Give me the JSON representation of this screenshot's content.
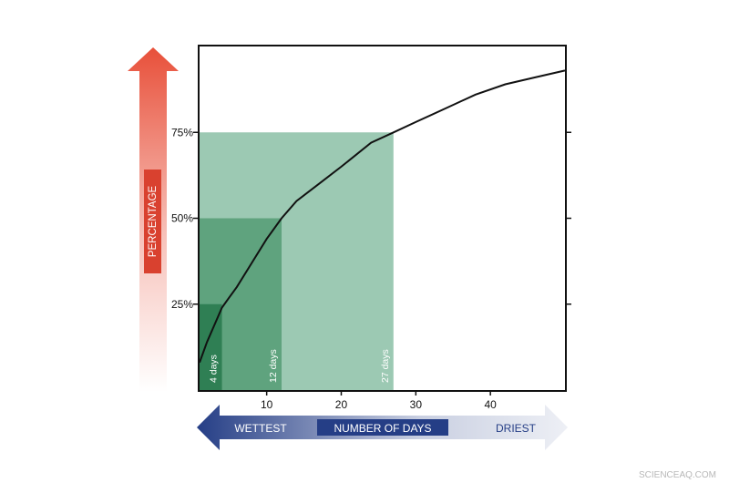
{
  "chart_data": {
    "type": "line",
    "title": "",
    "xlabel": "NUMBER OF DAYS",
    "ylabel": "PERCENTAGE",
    "xlim": [
      1,
      50
    ],
    "ylim": [
      0,
      100
    ],
    "x_ticks": [
      10,
      20,
      30,
      40
    ],
    "x_tick_labels": [
      "10",
      "20",
      "30",
      "40"
    ],
    "y_ticks": [
      25,
      50,
      75
    ],
    "y_tick_labels": [
      "25%",
      "50%",
      "75%"
    ],
    "grid": false,
    "legend": "none",
    "x": [
      1,
      2,
      3,
      4,
      5,
      6,
      8,
      10,
      12,
      14,
      17,
      20,
      24,
      27,
      30,
      34,
      38,
      42,
      46,
      50
    ],
    "series": [
      {
        "values": [
          8,
          14,
          19,
          24,
          27,
          30,
          37,
          44,
          50,
          55,
          60,
          65,
          72,
          75,
          78,
          82,
          86,
          89,
          91,
          93
        ]
      }
    ],
    "thresholds": [
      {
        "days": 4,
        "percent": 25,
        "label": "4 days",
        "color": "#2f7f54"
      },
      {
        "days": 12,
        "percent": 50,
        "label": "12 days",
        "color": "#5fa37e"
      },
      {
        "days": 27,
        "percent": 75,
        "label": "27 days",
        "color": "#9cc9b3"
      }
    ],
    "x_axis_arrow": {
      "left_label": "WETTEST",
      "right_label": "DRIEST",
      "center_label": "NUMBER OF DAYS"
    },
    "colors": {
      "line": "#111111",
      "percent_arrow": "#e8503a",
      "percent_label_box": "#d9412f",
      "days_arrow_start": "#253e86",
      "days_label_box": "#253e86"
    }
  },
  "watermark": "SCIENCEAQ.COM"
}
